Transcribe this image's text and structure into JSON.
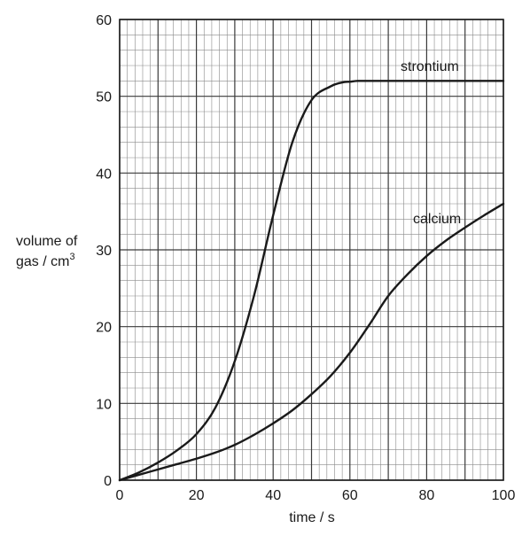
{
  "chart_data": {
    "type": "line",
    "title": "",
    "xlabel": "time / s",
    "ylabel": {
      "line1": "volume of",
      "line2": "gas / cm",
      "superscript": "3"
    },
    "xlim": [
      0,
      100
    ],
    "ylim": [
      0,
      60
    ],
    "xticks": [
      0,
      20,
      40,
      60,
      80,
      100
    ],
    "yticks": [
      0,
      10,
      20,
      30,
      40,
      50,
      60
    ],
    "grid": {
      "shown": true,
      "minor_step": 2,
      "major_step": 10
    },
    "series": [
      {
        "name": "strontium",
        "color": "#1a1a1a",
        "x": [
          0,
          5,
          10,
          15,
          20,
          25,
          30,
          35,
          40,
          45,
          50,
          55,
          58,
          60,
          62,
          65,
          70,
          80,
          90,
          100
        ],
        "y": [
          0,
          1,
          2.3,
          3.9,
          6,
          9.5,
          15.5,
          24,
          34.5,
          44,
          49.5,
          51.3,
          51.8,
          51.9,
          52,
          52,
          52,
          52,
          52,
          52
        ]
      },
      {
        "name": "calcium",
        "color": "#1a1a1a",
        "x": [
          0,
          5,
          10,
          15,
          20,
          25,
          30,
          35,
          40,
          45,
          50,
          55,
          60,
          65,
          70,
          75,
          80,
          85,
          90,
          95,
          100
        ],
        "y": [
          0,
          0.7,
          1.4,
          2.1,
          2.8,
          3.6,
          4.6,
          5.9,
          7.4,
          9.1,
          11.2,
          13.6,
          16.6,
          20.2,
          24,
          26.8,
          29.2,
          31.2,
          32.9,
          34.5,
          36
        ]
      }
    ]
  }
}
